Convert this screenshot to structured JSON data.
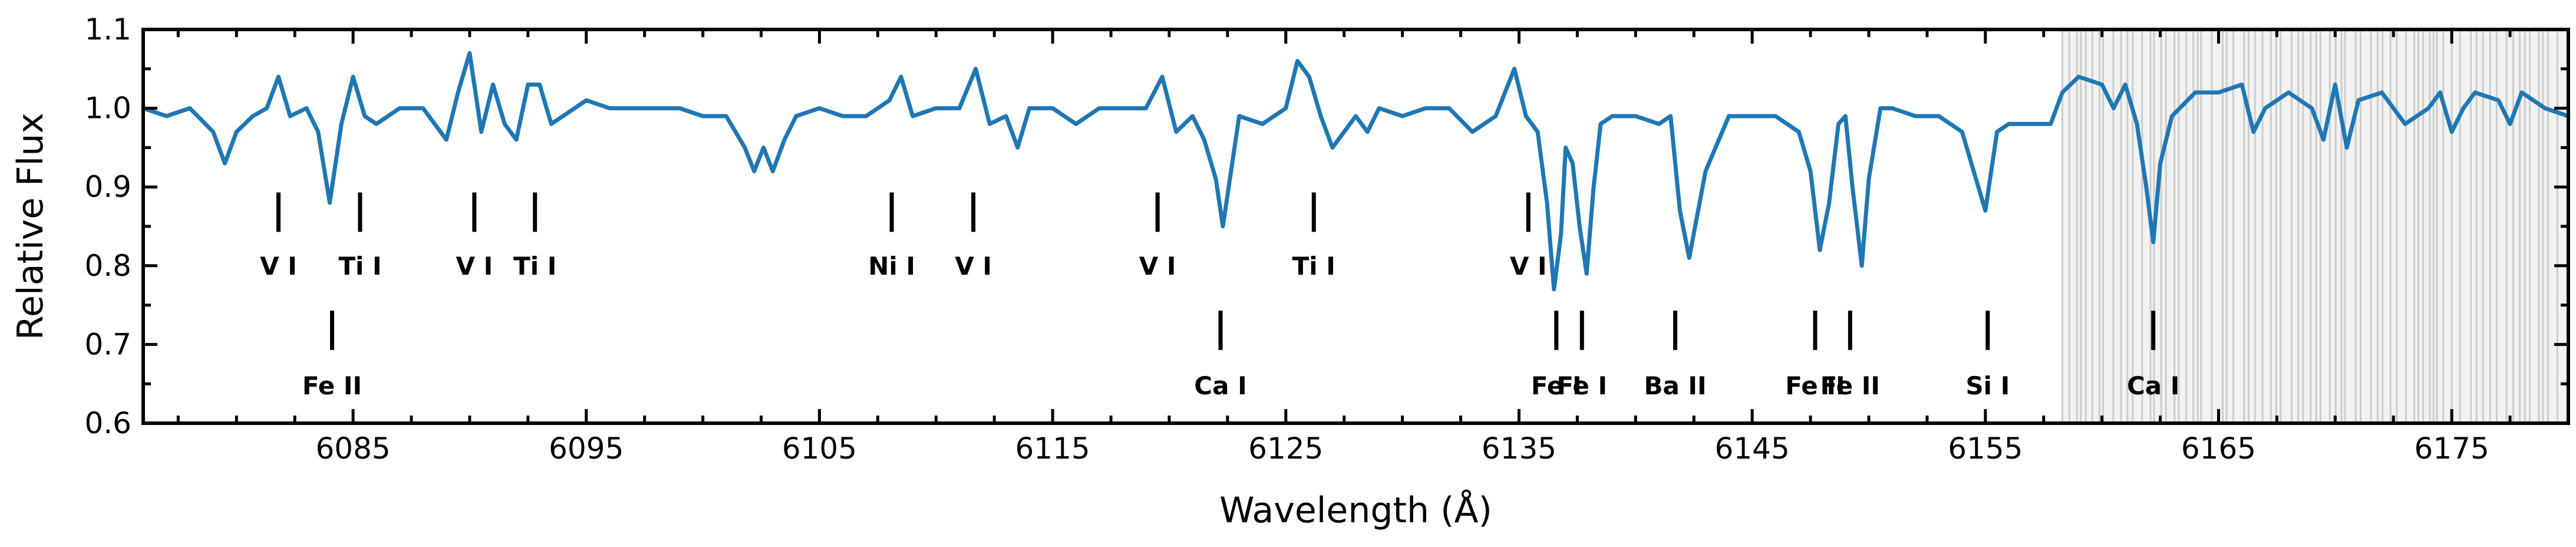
{
  "chart_data": {
    "type": "line",
    "xlabel": "Wavelength (Å)",
    "ylabel": "Relative Flux",
    "xlim": [
      6076.0,
      6180.0
    ],
    "ylim": [
      0.6,
      1.1
    ],
    "x_ticks": [
      6085,
      6095,
      6105,
      6115,
      6125,
      6135,
      6145,
      6155,
      6165,
      6175
    ],
    "y_ticks": [
      0.6,
      0.7,
      0.8,
      0.9,
      1.0,
      1.1
    ],
    "y_tick_labels": [
      "0.6",
      "0.7",
      "0.8",
      "0.9",
      "1.0",
      "1.1"
    ],
    "grid": false,
    "line_color": "#1f77b4",
    "masked_region": {
      "x_start": 6158.3,
      "x_end": 6180.0,
      "color": "#cccccc"
    },
    "series": [
      {
        "x": [
          6076.0,
          6077.0,
          6078.0,
          6079.0,
          6079.5,
          6080.0,
          6080.7,
          6081.3,
          6081.8,
          6082.3,
          6083.0,
          6083.5,
          6084.0,
          6084.5,
          6085.0,
          6085.5,
          6086.0,
          6087.0,
          6088.0,
          6089.0,
          6089.5,
          6090.0,
          6090.5,
          6091.0,
          6091.5,
          6092.0,
          6092.5,
          6093.0,
          6093.5,
          6094.0,
          6095.0,
          6096.0,
          6097.0,
          6098.0,
          6099.0,
          6100.0,
          6101.0,
          6101.8,
          6102.2,
          6102.6,
          6103.0,
          6103.5,
          6104.0,
          6105.0,
          6106.0,
          6107.0,
          6108.0,
          6108.5,
          6109.0,
          6110.0,
          6111.0,
          6111.7,
          6112.3,
          6113.0,
          6113.5,
          6114.0,
          6115.0,
          6116.0,
          6117.0,
          6118.0,
          6119.0,
          6119.7,
          6120.3,
          6121.0,
          6121.5,
          6122.0,
          6122.3,
          6122.7,
          6123.0,
          6124.0,
          6125.0,
          6125.5,
          6126.0,
          6126.5,
          6127.0,
          6128.0,
          6128.5,
          6129.0,
          6130.0,
          6131.0,
          6132.0,
          6133.0,
          6134.0,
          6134.8,
          6135.3,
          6135.8,
          6136.2,
          6136.5,
          6136.8,
          6137.0,
          6137.3,
          6137.6,
          6137.9,
          6138.2,
          6138.5,
          6139.0,
          6140.0,
          6141.0,
          6141.5,
          6141.9,
          6142.3,
          6143.0,
          6144.0,
          6145.0,
          6146.0,
          6147.0,
          6147.5,
          6147.9,
          6148.3,
          6148.7,
          6149.0,
          6149.3,
          6149.7,
          6150.0,
          6150.5,
          6151.0,
          6152.0,
          6153.0,
          6154.0,
          6154.5,
          6155.0,
          6155.5,
          6156.0,
          6157.0,
          6157.8,
          6158.3,
          6159.0,
          6160.0,
          6160.5,
          6161.0,
          6161.5,
          6161.9,
          6162.2,
          6162.5,
          6163.0,
          6164.0,
          6165.0,
          6166.0,
          6166.5,
          6167.0,
          6168.0,
          6169.0,
          6169.5,
          6170.0,
          6170.5,
          6171.0,
          6172.0,
          6173.0,
          6174.0,
          6174.5,
          6175.0,
          6175.5,
          6176.0,
          6177.0,
          6177.5,
          6178.0,
          6179.0,
          6180.0
        ],
        "y": [
          1.0,
          0.99,
          1.0,
          0.97,
          0.93,
          0.97,
          0.99,
          1.0,
          1.04,
          0.99,
          1.0,
          0.97,
          0.88,
          0.98,
          1.04,
          0.99,
          0.98,
          1.0,
          1.0,
          0.96,
          1.02,
          1.07,
          0.97,
          1.03,
          0.98,
          0.96,
          1.03,
          1.03,
          0.98,
          0.99,
          1.01,
          1.0,
          1.0,
          1.0,
          1.0,
          0.99,
          0.99,
          0.95,
          0.92,
          0.95,
          0.92,
          0.96,
          0.99,
          1.0,
          0.99,
          0.99,
          1.01,
          1.04,
          0.99,
          1.0,
          1.0,
          1.05,
          0.98,
          0.99,
          0.95,
          1.0,
          1.0,
          0.98,
          1.0,
          1.0,
          1.0,
          1.04,
          0.97,
          0.99,
          0.96,
          0.91,
          0.85,
          0.93,
          0.99,
          0.98,
          1.0,
          1.06,
          1.04,
          0.99,
          0.95,
          0.99,
          0.97,
          1.0,
          0.99,
          1.0,
          1.0,
          0.97,
          0.99,
          1.05,
          0.99,
          0.97,
          0.88,
          0.77,
          0.84,
          0.95,
          0.93,
          0.85,
          0.79,
          0.9,
          0.98,
          0.99,
          0.99,
          0.98,
          0.99,
          0.87,
          0.81,
          0.92,
          0.99,
          0.99,
          0.99,
          0.97,
          0.92,
          0.82,
          0.88,
          0.98,
          0.99,
          0.9,
          0.8,
          0.91,
          1.0,
          1.0,
          0.99,
          0.99,
          0.97,
          0.92,
          0.87,
          0.97,
          0.98,
          0.98,
          0.98,
          1.02,
          1.04,
          1.03,
          1.0,
          1.03,
          0.98,
          0.9,
          0.83,
          0.93,
          0.99,
          1.02,
          1.02,
          1.03,
          0.97,
          1.0,
          1.02,
          1.0,
          0.96,
          1.03,
          0.95,
          1.01,
          1.02,
          0.98,
          1.0,
          1.02,
          0.97,
          1.0,
          1.02,
          1.01,
          0.98,
          1.02,
          1.0,
          0.99
        ]
      }
    ],
    "lines_upper": [
      {
        "label": "V I",
        "x": 6081.8
      },
      {
        "label": "Ti I",
        "x": 6085.3
      },
      {
        "label": "V I",
        "x": 6090.2
      },
      {
        "label": "Ti I",
        "x": 6092.8
      },
      {
        "label": "Ni I",
        "x": 6108.1
      },
      {
        "label": "V I",
        "x": 6111.6
      },
      {
        "label": "V I",
        "x": 6119.5
      },
      {
        "label": "Ti I",
        "x": 6126.2
      },
      {
        "label": "V I",
        "x": 6135.4
      }
    ],
    "lines_lower": [
      {
        "label": "Fe II",
        "x": 6084.1
      },
      {
        "label": "Ca I",
        "x": 6122.2
      },
      {
        "label": "Fe I",
        "x": 6136.6
      },
      {
        "label": "Fe I",
        "x": 6137.7
      },
      {
        "label": "Ba II",
        "x": 6141.7
      },
      {
        "label": "Fe II",
        "x": 6147.7
      },
      {
        "label": "Fe II",
        "x": 6149.2
      },
      {
        "label": "Si I",
        "x": 6155.1
      },
      {
        "label": "Ca I",
        "x": 6162.2
      }
    ]
  }
}
